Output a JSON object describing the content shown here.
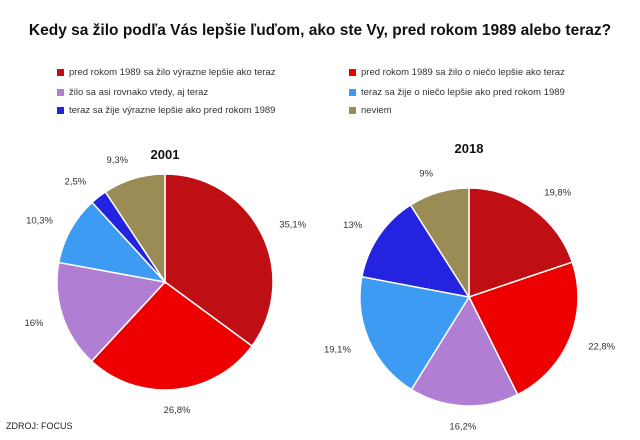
{
  "title": "Kedy sa žilo podľa Vás lepšie ľuďom, ako ste Vy, pred rokom 1989 alebo teraz?",
  "source": "ZDROJ: FOCUS",
  "legend": [
    {
      "label": "pred rokom 1989 sa žilo výrazne lepšie ako teraz",
      "color": "#C00F14"
    },
    {
      "label": "žilo sa asi rovnako vtedy, aj teraz",
      "color": "#B07FD4"
    },
    {
      "label": "teraz sa žije výrazne lepšie ako pred rokom 1989",
      "color": "#2323E0"
    },
    {
      "label": "pred rokom 1989 sa žilo o niečo lepšie ako teraz",
      "color": "#EE0000"
    },
    {
      "label": "teraz sa žije o niečo lepšie ako pred rokom 1989",
      "color": "#3D9BF4"
    },
    {
      "label": "neviem",
      "color": "#9B8C55"
    }
  ],
  "chart_data": [
    {
      "type": "pie",
      "title": "2001",
      "slices": [
        {
          "category": "pred rokom 1989 sa žilo výrazne lepšie ako teraz",
          "value": 35.1,
          "label": "35,1%",
          "color": "#C00F14"
        },
        {
          "category": "pred rokom 1989 sa žilo o niečo lepšie ako teraz",
          "value": 26.8,
          "label": "26,8%",
          "color": "#EE0000"
        },
        {
          "category": "žilo sa asi rovnako vtedy, aj teraz",
          "value": 16,
          "label": "16%",
          "color": "#B07FD4"
        },
        {
          "category": "teraz sa žije o niečo lepšie ako pred rokom 1989",
          "value": 10.3,
          "label": "10,3%",
          "color": "#3D9BF4"
        },
        {
          "category": "teraz sa žije výrazne lepšie ako pred rokom 1989",
          "value": 2.5,
          "label": "2,5%",
          "color": "#2323E0"
        },
        {
          "category": "neviem",
          "value": 9.3,
          "label": "9,3%",
          "color": "#9B8C55"
        }
      ]
    },
    {
      "type": "pie",
      "title": "2018",
      "slices": [
        {
          "category": "pred rokom 1989 sa žilo výrazne lepšie ako teraz",
          "value": 19.8,
          "label": "19,8%",
          "color": "#C00F14"
        },
        {
          "category": "pred rokom 1989 sa žilo o niečo lepšie ako teraz",
          "value": 22.8,
          "label": "22,8%",
          "color": "#EE0000"
        },
        {
          "category": "žilo sa asi rovnako vtedy, aj teraz",
          "value": 16.2,
          "label": "16,2%",
          "color": "#B07FD4"
        },
        {
          "category": "teraz sa žije o niečo lepšie ako pred rokom 1989",
          "value": 19.1,
          "label": "19,1%",
          "color": "#3D9BF4"
        },
        {
          "category": "teraz sa žije výrazne lepšie ako pred rokom 1989",
          "value": 13,
          "label": "13%",
          "color": "#2323E0"
        },
        {
          "category": "neviem",
          "value": 9,
          "label": "9%",
          "color": "#9B8C55"
        }
      ]
    }
  ]
}
